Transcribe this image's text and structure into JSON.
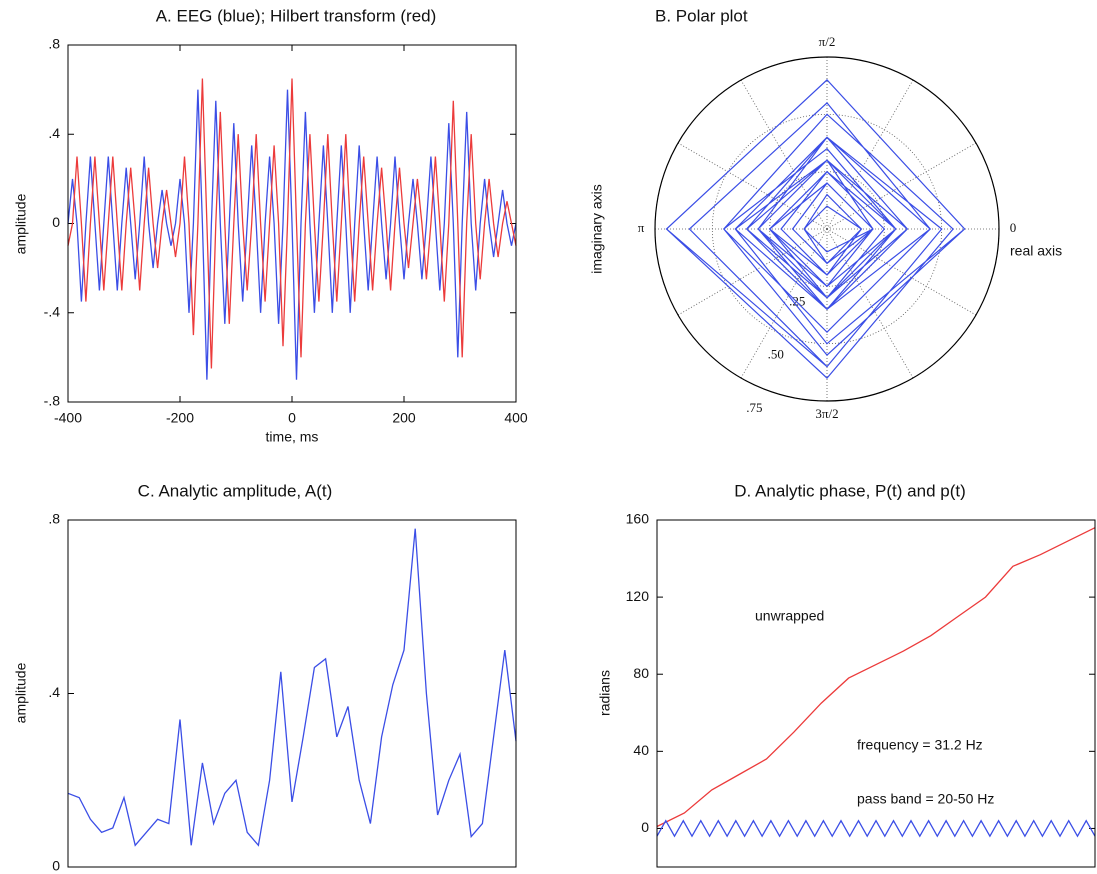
{
  "chart_data": [
    {
      "type": "line",
      "title": "A. EEG (blue);  Hilbert transform (red)",
      "xlabel": "time, ms",
      "ylabel": "amplitude",
      "x": [
        -400,
        -392,
        -384,
        -376,
        -368,
        -360,
        -352,
        -344,
        -336,
        -328,
        -320,
        -312,
        -304,
        -296,
        -288,
        -280,
        -272,
        -264,
        -256,
        -248,
        -240,
        -232,
        -224,
        -216,
        -208,
        -200,
        -192,
        -184,
        -176,
        -168,
        -160,
        -152,
        -144,
        -136,
        -128,
        -120,
        -112,
        -104,
        -96,
        -88,
        -80,
        -72,
        -64,
        -56,
        -48,
        -40,
        -32,
        -24,
        -16,
        -8,
        0,
        8,
        16,
        24,
        32,
        40,
        48,
        56,
        64,
        72,
        80,
        88,
        96,
        104,
        112,
        120,
        128,
        136,
        144,
        152,
        160,
        168,
        176,
        184,
        192,
        200,
        208,
        216,
        224,
        232,
        240,
        248,
        256,
        264,
        272,
        280,
        288,
        296,
        304,
        312,
        320,
        328,
        336,
        344,
        352,
        360,
        368,
        376,
        384,
        392,
        400
      ],
      "series": [
        {
          "color": "#3b4ee6",
          "values": [
            0,
            0.2,
            0,
            -0.35,
            0,
            0.3,
            0,
            -0.3,
            0,
            0.3,
            0,
            -0.3,
            0,
            0.25,
            0,
            -0.25,
            0,
            0.3,
            0,
            -0.2,
            0,
            0.15,
            0,
            -0.1,
            0,
            0.2,
            0,
            -0.4,
            0,
            0.6,
            0,
            -0.7,
            0,
            0.55,
            0,
            -0.45,
            0,
            0.45,
            0,
            -0.35,
            0,
            0.35,
            0,
            -0.4,
            0,
            0.3,
            0,
            -0.45,
            0,
            0.6,
            0,
            -0.7,
            0,
            0.5,
            0,
            -0.4,
            0,
            0.35,
            0,
            -0.4,
            0,
            0.35,
            0,
            -0.4,
            0,
            0.35,
            0,
            -0.3,
            0,
            0.3,
            0,
            -0.25,
            0,
            0.3,
            0,
            -0.25,
            0,
            0.2,
            0,
            -0.25,
            0,
            0.3,
            0,
            -0.3,
            0,
            0.45,
            0,
            -0.6,
            0,
            0.5,
            0,
            -0.3,
            0,
            0.2,
            0,
            -0.15,
            0,
            0.15,
            0,
            -0.1,
            0
          ]
        },
        {
          "color": "#ec3b3b",
          "values": [
            -0.1,
            0,
            0.3,
            0,
            -0.35,
            0,
            0.3,
            0,
            -0.3,
            0,
            0.3,
            0,
            -0.3,
            0,
            0.25,
            0,
            -0.3,
            0,
            0.25,
            0,
            -0.2,
            0,
            0.15,
            0,
            -0.15,
            0,
            0.3,
            0,
            -0.5,
            0,
            0.65,
            0,
            -0.65,
            0,
            0.5,
            0,
            -0.45,
            0,
            0.4,
            0,
            -0.3,
            0,
            0.4,
            0,
            -0.35,
            0,
            0.35,
            0,
            -0.55,
            0,
            0.65,
            0,
            -0.6,
            0,
            0.4,
            0,
            -0.35,
            0,
            0.4,
            0,
            -0.35,
            0,
            0.4,
            0,
            -0.35,
            0,
            0.3,
            0,
            -0.3,
            0,
            0.25,
            0,
            -0.3,
            0,
            0.25,
            0,
            -0.2,
            0,
            0.2,
            0,
            -0.25,
            0,
            0.3,
            0,
            -0.35,
            0,
            0.55,
            0,
            -0.6,
            0,
            0.4,
            0,
            -0.25,
            0,
            0.2,
            0,
            -0.15,
            0,
            0.1,
            0,
            -0.1
          ]
        }
      ],
      "xlim": [
        -400,
        400
      ],
      "xticks": [
        -400,
        -200,
        0,
        200,
        400
      ],
      "ylim": [
        -0.8,
        0.8
      ],
      "yticks": [
        {
          "value": -0.8,
          "label": "-.8"
        },
        {
          "value": -0.4,
          "label": "-.4"
        },
        0,
        {
          "value": 0.4,
          "label": ".4"
        },
        {
          "value": 0.8,
          "label": ".8"
        }
      ]
    },
    {
      "type": "polar",
      "title": "B. Polar plot",
      "xlabel": "real axis",
      "ylabel": "imaginary axis",
      "rlim": [
        0,
        0.75
      ],
      "rticks": [
        {
          "value": 0.25,
          "label": ".25"
        },
        {
          "value": 0.5,
          "label": ".50"
        },
        {
          "value": 0.75,
          "label": ".75"
        }
      ],
      "thetaticks": [
        {
          "value": 0,
          "label": "0"
        },
        {
          "value": 90,
          "label": "π/2"
        },
        {
          "value": 180,
          "label": "π"
        },
        {
          "value": 270,
          "label": "3π/2"
        }
      ]
    },
    {
      "type": "line",
      "title": "C. Analytic amplitude, A(t)",
      "ylabel": "amplitude",
      "x": [
        -400,
        -380,
        -360,
        -340,
        -320,
        -300,
        -280,
        -260,
        -240,
        -220,
        -200,
        -180,
        -160,
        -140,
        -120,
        -100,
        -80,
        -60,
        -40,
        -20,
        0,
        20,
        40,
        60,
        80,
        100,
        120,
        140,
        160,
        180,
        200,
        220,
        240,
        260,
        280,
        300,
        320,
        340,
        360,
        380,
        400
      ],
      "series": [
        {
          "color": "#3b4ee6",
          "values": [
            0.17,
            0.16,
            0.11,
            0.08,
            0.09,
            0.16,
            0.05,
            0.08,
            0.11,
            0.1,
            0.34,
            0.05,
            0.24,
            0.1,
            0.17,
            0.2,
            0.08,
            0.05,
            0.2,
            0.45,
            0.15,
            0.3,
            0.46,
            0.48,
            0.3,
            0.37,
            0.2,
            0.1,
            0.3,
            0.42,
            0.5,
            0.78,
            0.4,
            0.12,
            0.2,
            0.26,
            0.07,
            0.1,
            0.3,
            0.5,
            0.29
          ]
        }
      ],
      "xlim": [
        -400,
        400
      ],
      "ylim": [
        0,
        0.8
      ],
      "yticks": [
        0,
        {
          "value": 0.4,
          "label": ".4"
        },
        {
          "value": 0.8,
          "label": ".8"
        }
      ]
    },
    {
      "type": "line",
      "title": "D. Analytic phase, P(t) and p(t)",
      "ylabel": "radians",
      "annotations": [
        "unwrapped",
        "frequency = 31.2 Hz",
        "pass band = 20-50 Hz"
      ],
      "series": [
        {
          "color": "#ec3b3b",
          "x": [
            -400,
            -350,
            -300,
            -250,
            -200,
            -150,
            -100,
            -50,
            0,
            50,
            100,
            150,
            200,
            250,
            300,
            350,
            400
          ],
          "values": [
            1,
            8,
            20,
            28,
            36,
            50,
            65,
            78,
            85,
            92,
            100,
            110,
            120,
            136,
            142,
            149,
            156
          ]
        },
        {
          "color": "#3b4ee6",
          "x": [
            -400,
            -384,
            -368,
            -352,
            -336,
            -320,
            -304,
            -288,
            -272,
            -256,
            -240,
            -224,
            -208,
            -192,
            -176,
            -160,
            -144,
            -128,
            -112,
            -96,
            -80,
            -64,
            -48,
            -32,
            -16,
            0,
            16,
            32,
            48,
            64,
            80,
            96,
            112,
            128,
            144,
            160,
            176,
            192,
            208,
            224,
            240,
            256,
            272,
            288,
            304,
            320,
            336,
            352,
            368,
            384,
            400
          ],
          "values": [
            -4,
            4,
            -4,
            4,
            -4,
            4,
            -4,
            4,
            -4,
            4,
            -4,
            4,
            -4,
            4,
            -4,
            4,
            -4,
            4,
            -4,
            4,
            -4,
            4,
            -4,
            4,
            -4,
            4,
            -4,
            4,
            -4,
            4,
            -4,
            4,
            -4,
            4,
            -4,
            4,
            -4,
            4,
            -4,
            4,
            -4,
            4,
            -4,
            4,
            -4,
            4,
            -4,
            4,
            -4,
            4,
            -4
          ]
        }
      ],
      "xlim": [
        -400,
        400
      ],
      "ylim": [
        -20,
        160
      ],
      "yticks": [
        0,
        40,
        80,
        120,
        160
      ]
    }
  ]
}
